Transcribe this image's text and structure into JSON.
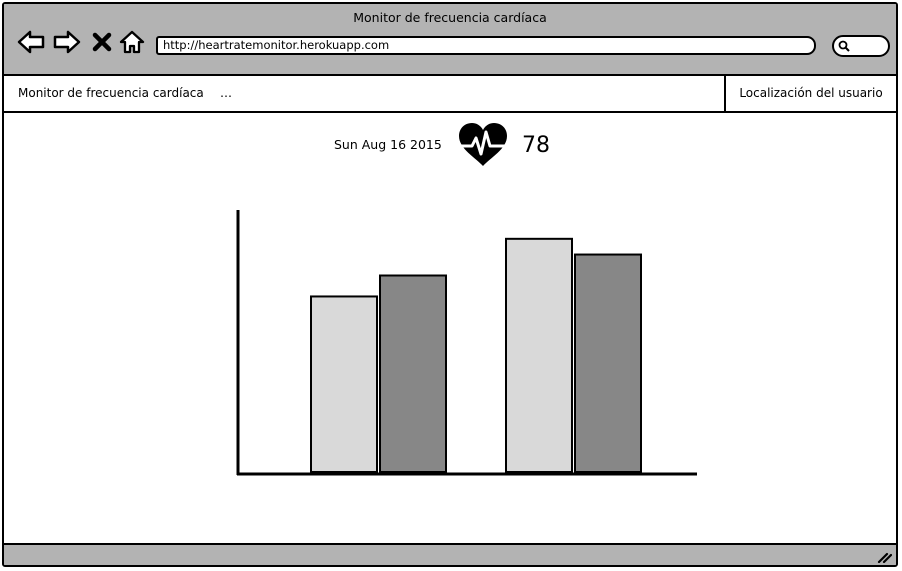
{
  "window": {
    "title": "Monitor de frecuencia cardíaca",
    "url": "http://heartratemonitor.herokuapp.com"
  },
  "menu": {
    "app_title": "Monitor de frecuencia cardíaca",
    "more": "…",
    "user_location": "Localización del usuario"
  },
  "readout": {
    "date": "Sun Aug 16 2015",
    "bpm": "78",
    "icon": "heart-pulse-icon"
  },
  "chart_data": {
    "type": "bar",
    "categories": [
      "",
      ""
    ],
    "series": [
      {
        "values": [
          67,
          89
        ],
        "color": "#d9d9d9"
      },
      {
        "values": [
          75,
          83
        ],
        "color": "#878787"
      }
    ],
    "ylim": [
      0,
      100
    ],
    "grid": false,
    "xlabel": "",
    "ylabel": ""
  },
  "colors": {
    "chrome": "#b3b3b3",
    "bar_light": "#d9d9d9",
    "bar_dark": "#878787"
  }
}
